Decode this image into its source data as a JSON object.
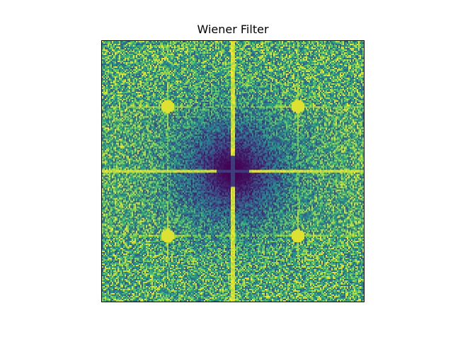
{
  "chart_data": {
    "type": "heatmap",
    "title": "Wiener Filter",
    "xlabel": "",
    "ylabel": "",
    "colormap": "viridis",
    "grid": false,
    "axis_ticks": false,
    "grid_size": [
      185,
      184
    ],
    "center": [
      0.5,
      0.5
    ],
    "features": {
      "center_dark_radius_fraction": 0.23,
      "bright_cross_through_center": true,
      "bright_spots_at_fractions": [
        [
          0.25,
          0.25
        ],
        [
          0.75,
          0.25
        ],
        [
          0.25,
          0.75
        ],
        [
          0.75,
          0.75
        ]
      ],
      "bright_vertical_lines_at_fractions": [
        0.5
      ],
      "bright_horizontal_lines_at_fractions": [
        0.5
      ]
    }
  },
  "colors": {
    "colormap_stops": [
      "#440154",
      "#3b528b",
      "#21918c",
      "#5ec962",
      "#fde725"
    ],
    "frame": "#000000",
    "background": "#ffffff"
  }
}
